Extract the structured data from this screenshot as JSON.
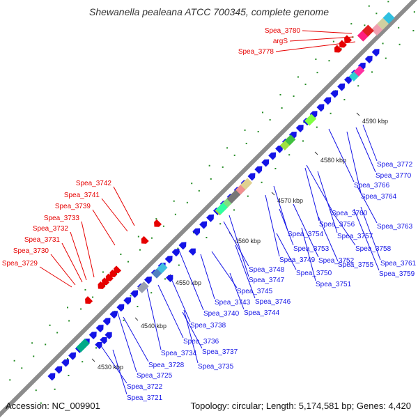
{
  "title": "Shewanella pealeana ATCC 700345, complete genome",
  "accession": "Accession: NC_009901",
  "summary": "Topology: circular; Length: 5,174,581 bp; Genes: 4,420",
  "colors": {
    "forward": "#1414e6",
    "reverse": "#e60000",
    "backbone": "#8c8c8c",
    "dots": "#228b22"
  },
  "kbp_ticks": [
    "4530 kbp",
    "4540 kbp",
    "4550 kbp",
    "4560 kbp",
    "4570 kbp",
    "4580 kbp",
    "4590 kbp"
  ],
  "red_labels": [
    "Spea_3780",
    "argS",
    "Spea_3778",
    "Spea_3742",
    "Spea_3741",
    "Spea_3739",
    "Spea_3733",
    "Spea_3732",
    "Spea_3731",
    "Spea_3730",
    "Spea_3729"
  ],
  "blue_labels": [
    "Spea_3772",
    "Spea_3770",
    "Spea_3766",
    "Spea_3764",
    "Spea_3763",
    "Spea_3760",
    "Spea_3756",
    "Spea_3757",
    "Spea_3758",
    "Spea_3754",
    "Spea_3761",
    "Spea_3759",
    "Spea_3753",
    "Spea_3755",
    "Spea_3752",
    "Spea_3749",
    "Spea_3750",
    "Spea_3748",
    "Spea_3751",
    "Spea_3747",
    "Spea_3745",
    "Spea_3743",
    "Spea_3746",
    "Spea_3740",
    "Spea_3744",
    "Spea_3738",
    "Spea_3736",
    "Spea_3734",
    "Spea_3737",
    "Spea_3728",
    "Spea_3735",
    "Spea_3725",
    "Spea_3722",
    "Spea_3721"
  ]
}
